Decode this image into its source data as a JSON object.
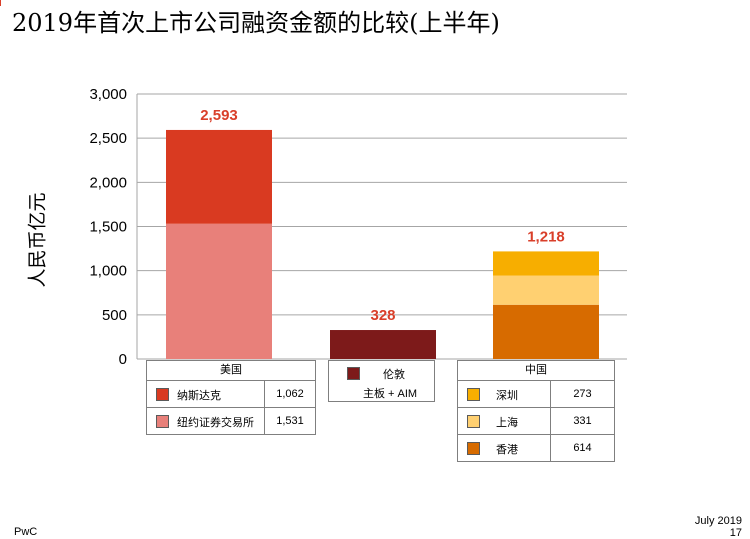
{
  "title": "2019年首次上市公司融资金额的比较(上半年)",
  "footer": {
    "date": "July 2019",
    "page": "17",
    "logo": "PwC"
  },
  "colors": {
    "nasdaq": "#d93a21",
    "nyse": "#e8807a",
    "london": "#7d1a1a",
    "shenzhen": "#f7ae00",
    "shanghai": "#ffd071",
    "hongkong": "#d76b00",
    "total_label": "#d93f2a",
    "grid": "#a6a6a6"
  },
  "chart_data": {
    "type": "bar",
    "stacked": true,
    "ylabel": "人民币亿元",
    "ylim": [
      0,
      3000
    ],
    "yticks": [
      "0",
      "500",
      "1,000",
      "1,500",
      "2,000",
      "2,500",
      "3,000"
    ],
    "grid": true,
    "groups": [
      {
        "name": "美国",
        "total_label": "2,593",
        "segments": [
          {
            "name": "纽约证券交易所",
            "value": 1531,
            "label": "1,531",
            "color_key": "nyse"
          },
          {
            "name": "纳斯达克",
            "value": 1062,
            "label": "1,062",
            "color_key": "nasdaq"
          }
        ]
      },
      {
        "name": "伦敦",
        "subtitle": "主板 + AIM",
        "total_label": "328",
        "segments": [
          {
            "name": "伦敦",
            "value": 328,
            "label": "328",
            "color_key": "london"
          }
        ]
      },
      {
        "name": "中国",
        "total_label": "1,218",
        "segments": [
          {
            "name": "香港",
            "value": 614,
            "label": "614",
            "color_key": "hongkong"
          },
          {
            "name": "上海",
            "value": 331,
            "label": "331",
            "color_key": "shanghai"
          },
          {
            "name": "深圳",
            "value": 273,
            "label": "273",
            "color_key": "shenzhen"
          }
        ]
      }
    ]
  },
  "legend": {
    "us": {
      "header": "美国",
      "rows": [
        {
          "name": "纳斯达克",
          "value": "1,062"
        },
        {
          "name": "纽约证券交易所",
          "value": "1,531"
        }
      ]
    },
    "london": {
      "name": "伦敦",
      "subtitle": "主板 + AIM"
    },
    "china": {
      "header": "中国",
      "rows": [
        {
          "name": "深圳",
          "value": "273"
        },
        {
          "name": "上海",
          "value": "331"
        },
        {
          "name": "香港",
          "value": "614"
        }
      ]
    }
  }
}
